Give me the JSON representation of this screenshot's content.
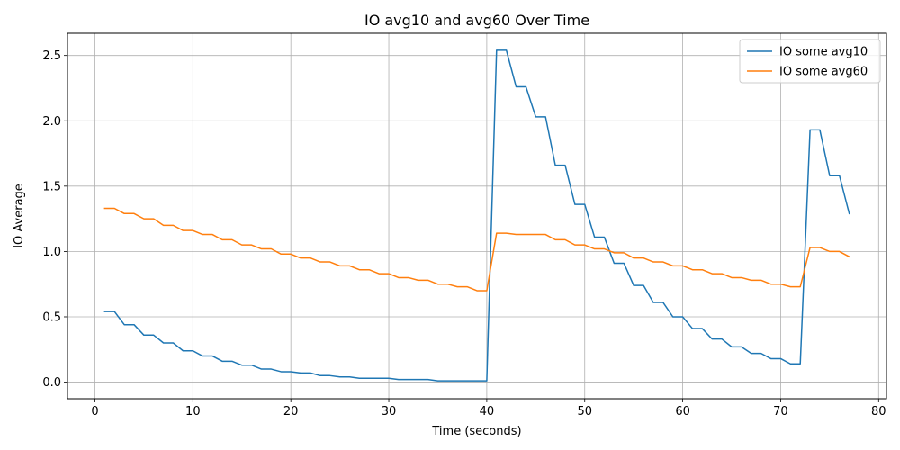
{
  "chart_data": {
    "type": "line",
    "title": "IO avg10 and avg60 Over Time",
    "xlabel": "Time (seconds)",
    "ylabel": "IO Average",
    "xlim": [
      -2.8,
      80.8
    ],
    "ylim": [
      -0.127,
      2.67
    ],
    "xticks": [
      0,
      10,
      20,
      30,
      40,
      50,
      60,
      70,
      80
    ],
    "yticks": [
      0.0,
      0.5,
      1.0,
      1.5,
      2.0,
      2.5
    ],
    "xtick_labels": [
      "0",
      "10",
      "20",
      "30",
      "40",
      "50",
      "60",
      "70",
      "80"
    ],
    "ytick_labels": [
      "0.0",
      "0.5",
      "1.0",
      "1.5",
      "2.0",
      "2.5"
    ],
    "grid": true,
    "legend_position": "upper right",
    "x": [
      1,
      2,
      3,
      4,
      5,
      6,
      7,
      8,
      9,
      10,
      11,
      12,
      13,
      14,
      15,
      16,
      17,
      18,
      19,
      20,
      21,
      22,
      23,
      24,
      25,
      26,
      27,
      28,
      29,
      30,
      31,
      32,
      33,
      34,
      35,
      36,
      37,
      38,
      39,
      40,
      41,
      42,
      43,
      44,
      45,
      46,
      47,
      48,
      49,
      50,
      51,
      52,
      53,
      54,
      55,
      56,
      57,
      58,
      59,
      60,
      61,
      62,
      63,
      64,
      65,
      66,
      67,
      68,
      69,
      70,
      71,
      72,
      73,
      74,
      75,
      76,
      77
    ],
    "series": [
      {
        "name": "IO some avg10",
        "color": "#1f77b4",
        "values": [
          0.54,
          0.54,
          0.44,
          0.44,
          0.36,
          0.36,
          0.3,
          0.3,
          0.24,
          0.24,
          0.2,
          0.2,
          0.16,
          0.16,
          0.13,
          0.13,
          0.1,
          0.1,
          0.08,
          0.08,
          0.07,
          0.07,
          0.05,
          0.05,
          0.04,
          0.04,
          0.03,
          0.03,
          0.03,
          0.03,
          0.02,
          0.02,
          0.02,
          0.02,
          0.01,
          0.01,
          0.01,
          0.01,
          0.01,
          0.01,
          2.54,
          2.54,
          2.26,
          2.26,
          2.03,
          2.03,
          1.66,
          1.66,
          1.36,
          1.36,
          1.11,
          1.11,
          0.91,
          0.91,
          0.74,
          0.74,
          0.61,
          0.61,
          0.5,
          0.5,
          0.41,
          0.41,
          0.33,
          0.33,
          0.27,
          0.27,
          0.22,
          0.22,
          0.18,
          0.18,
          0.14,
          0.14,
          1.93,
          1.93,
          1.58,
          1.58,
          1.29
        ]
      },
      {
        "name": "IO some avg60",
        "color": "#ff7f0e",
        "values": [
          1.33,
          1.33,
          1.29,
          1.29,
          1.25,
          1.25,
          1.2,
          1.2,
          1.16,
          1.16,
          1.13,
          1.13,
          1.09,
          1.09,
          1.05,
          1.05,
          1.02,
          1.02,
          0.98,
          0.98,
          0.95,
          0.95,
          0.92,
          0.92,
          0.89,
          0.89,
          0.86,
          0.86,
          0.83,
          0.83,
          0.8,
          0.8,
          0.78,
          0.78,
          0.75,
          0.75,
          0.73,
          0.73,
          0.7,
          0.7,
          1.14,
          1.14,
          1.13,
          1.13,
          1.13,
          1.13,
          1.09,
          1.09,
          1.05,
          1.05,
          1.02,
          1.02,
          0.99,
          0.99,
          0.95,
          0.95,
          0.92,
          0.92,
          0.89,
          0.89,
          0.86,
          0.86,
          0.83,
          0.83,
          0.8,
          0.8,
          0.78,
          0.78,
          0.75,
          0.75,
          0.73,
          0.73,
          1.03,
          1.03,
          1.0,
          1.0,
          0.96
        ]
      }
    ]
  }
}
